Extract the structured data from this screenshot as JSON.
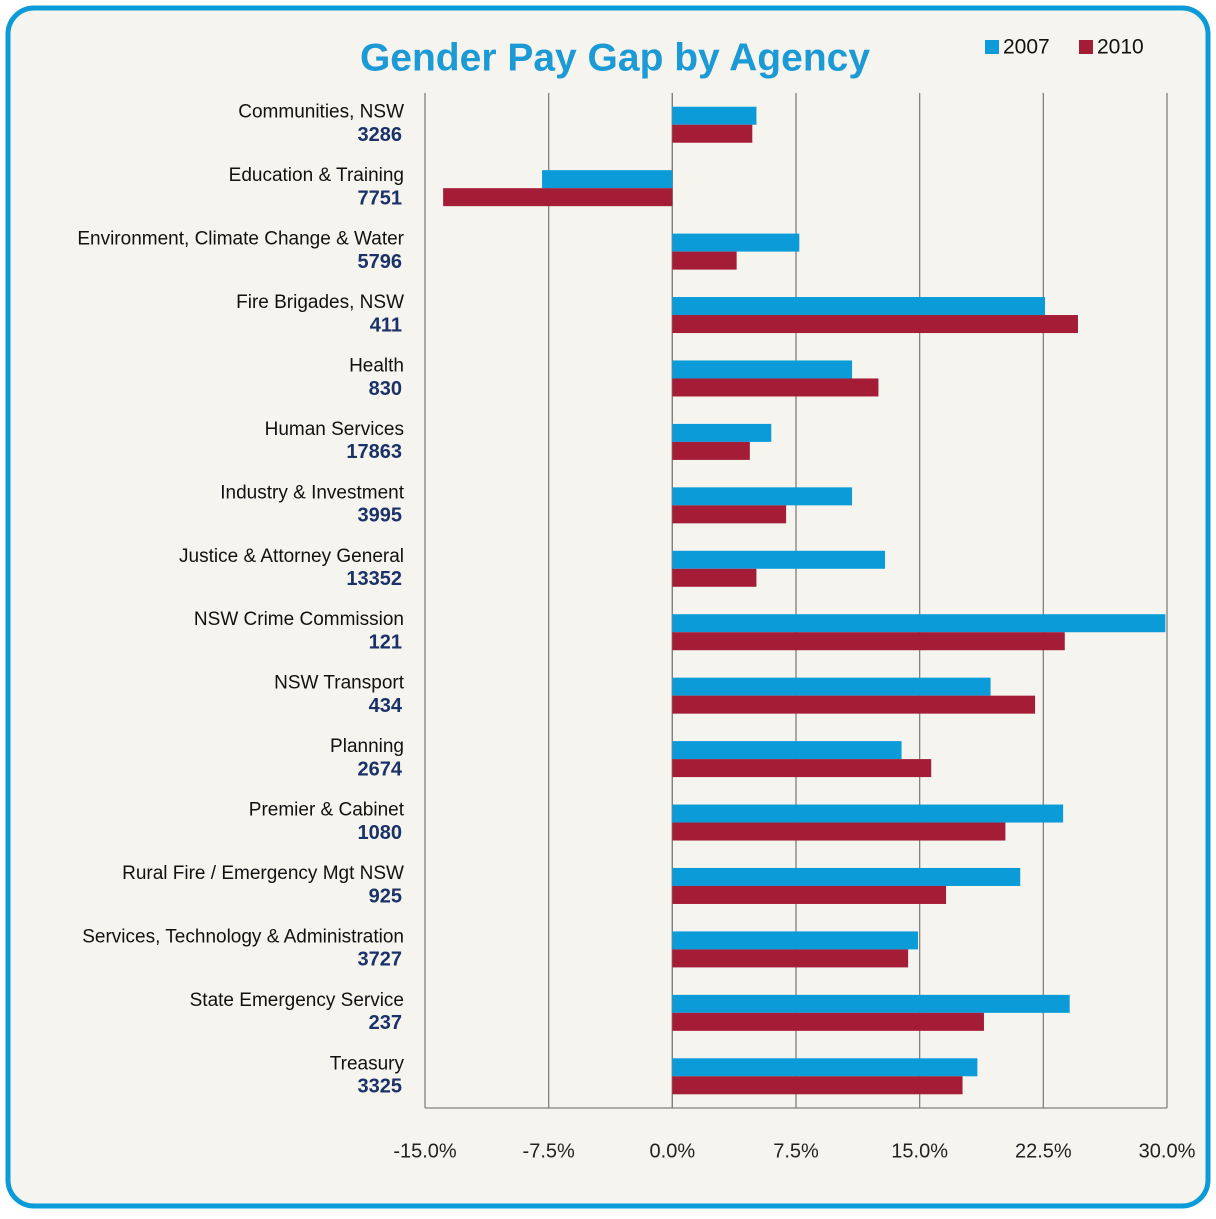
{
  "chart_data": {
    "type": "bar",
    "orientation": "horizontal",
    "title": "Gender Pay Gap by Agency",
    "categories": [
      "Communities, NSW",
      "Education & Training",
      "Environment, Climate Change & Water",
      "Fire Brigades, NSW",
      "Health",
      "Human Services",
      "Industry & Investment",
      "Justice & Attorney General",
      "NSW Crime Commission",
      "NSW Transport",
      "Planning",
      "Premier & Cabinet",
      "Rural Fire / Emergency Mgt NSW",
      "Services, Technology & Administration",
      "State Emergency Service",
      "Treasury"
    ],
    "counts": [
      3286,
      7751,
      5796,
      411,
      830,
      17863,
      3995,
      13352,
      121,
      434,
      2674,
      1080,
      925,
      3727,
      237,
      3325
    ],
    "series": [
      {
        "name": "2007",
        "color": "#0a9bd8",
        "values": [
          5.1,
          -7.9,
          7.7,
          22.6,
          10.9,
          6.0,
          10.9,
          12.9,
          29.9,
          19.3,
          13.9,
          23.7,
          21.1,
          14.9,
          24.1,
          18.5
        ]
      },
      {
        "name": "2010",
        "color": "#a51c36",
        "values": [
          4.85,
          -13.9,
          3.9,
          24.6,
          12.5,
          4.7,
          6.9,
          5.1,
          23.8,
          22.0,
          15.7,
          20.2,
          16.6,
          14.3,
          18.9,
          17.6
        ]
      }
    ],
    "xlim": [
      -15,
      30
    ],
    "xticks": [
      {
        "value": -15,
        "label": "-15.0%"
      },
      {
        "value": -7.5,
        "label": "-7.5%"
      },
      {
        "value": 0,
        "label": "0.0%"
      },
      {
        "value": 7.5,
        "label": "7.5%"
      },
      {
        "value": 15,
        "label": "15.0%"
      },
      {
        "value": 22.5,
        "label": "22.5%"
      },
      {
        "value": 30,
        "label": "30.0%"
      }
    ],
    "grid": true,
    "legend": "top-right"
  }
}
